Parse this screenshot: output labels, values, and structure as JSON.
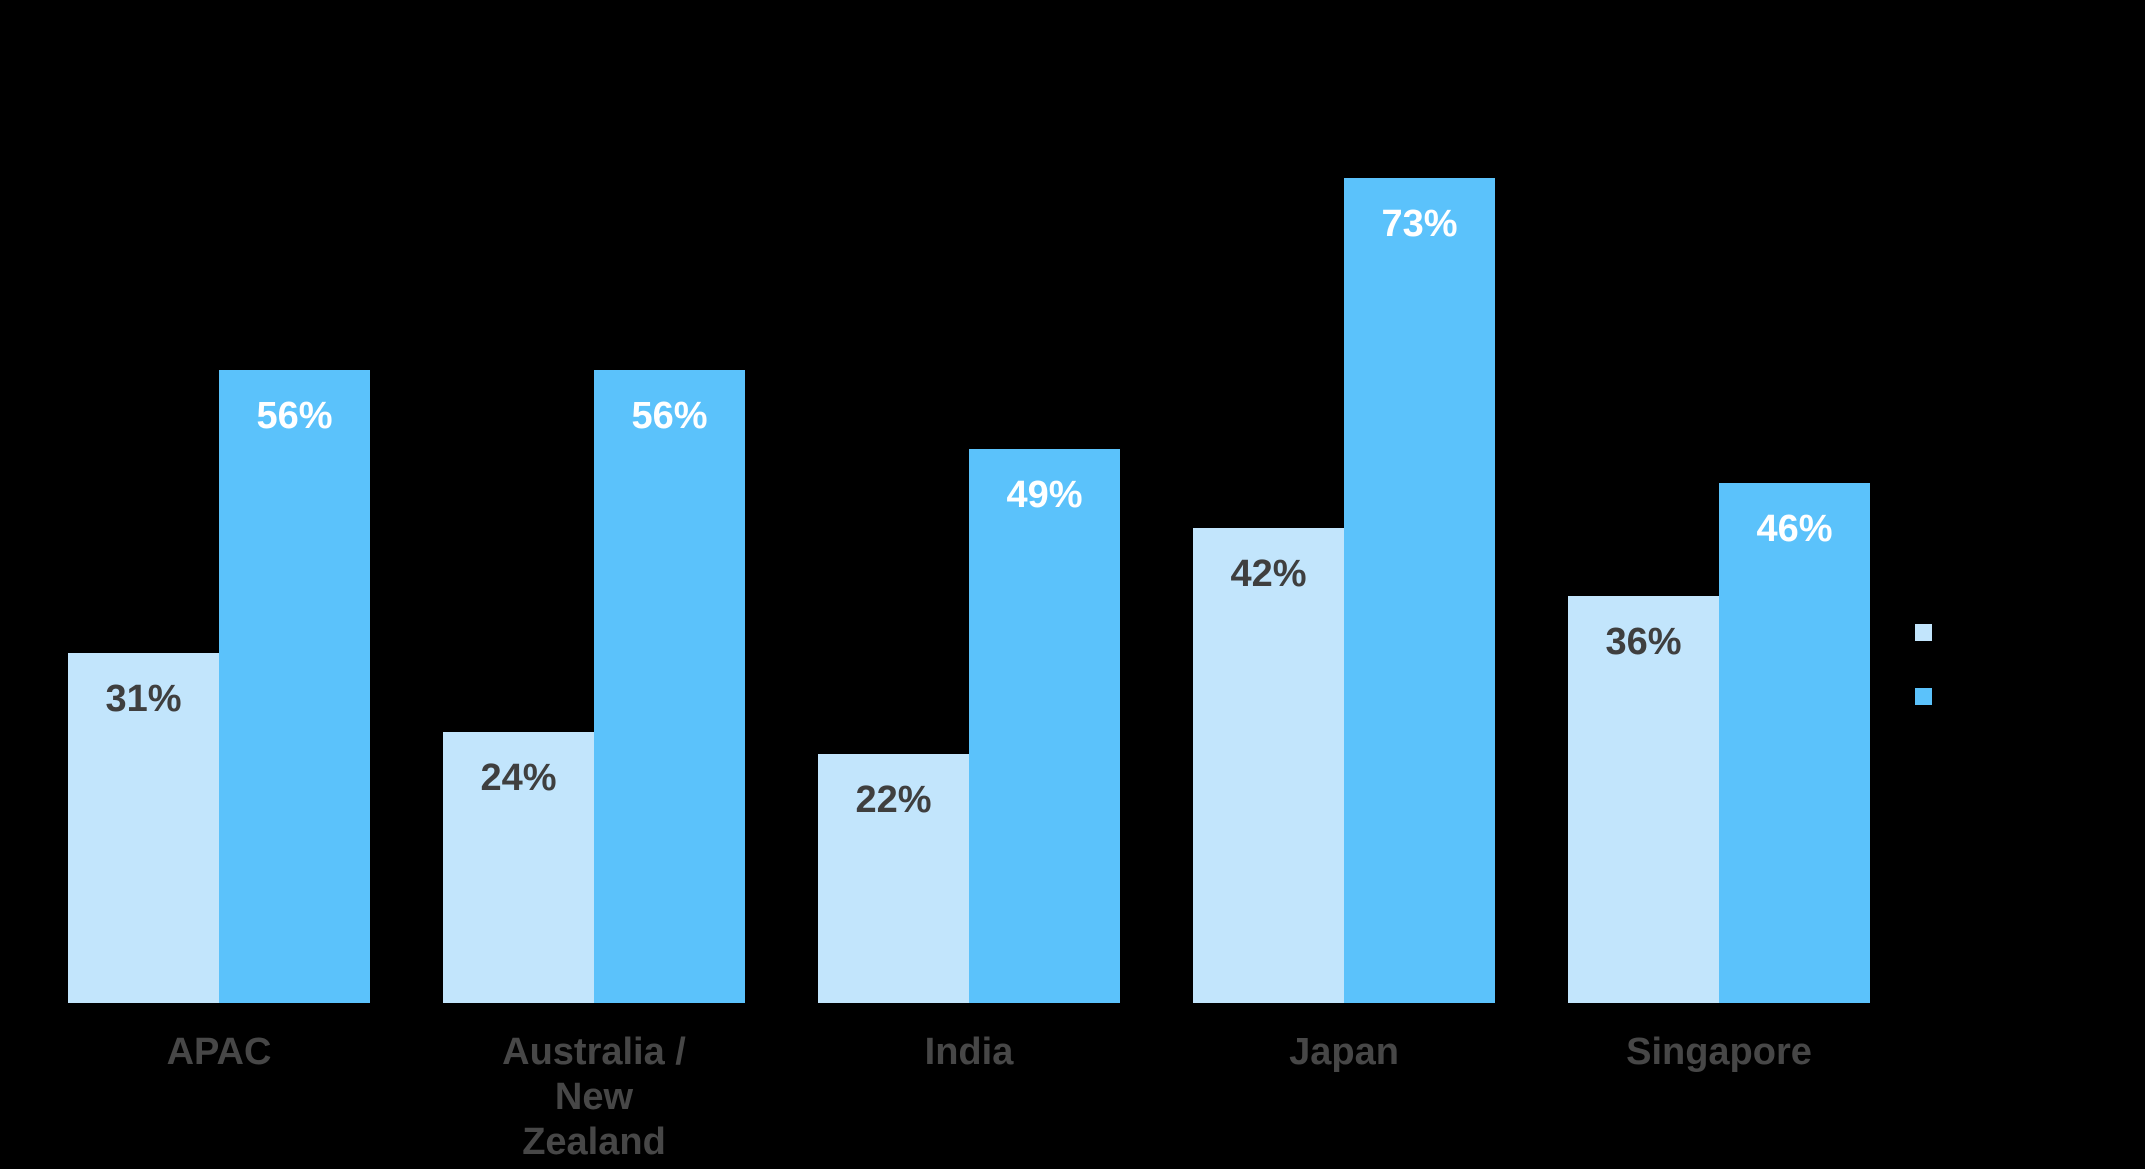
{
  "chart_data": {
    "type": "bar",
    "categories": [
      "APAC",
      "Australia /\nNew\nZealand",
      "India",
      "Japan",
      "Singapore"
    ],
    "unit": "%",
    "series": [
      {
        "name": "",
        "color": "#C2E5FC",
        "values": [
          31,
          24,
          22,
          42,
          36
        ],
        "value_labels": [
          "31%",
          "24%",
          "22%",
          "42%",
          "36%"
        ],
        "value_label_color": "#3F3F3F"
      },
      {
        "name": "",
        "color": "#5BC2FB",
        "values": [
          56,
          56,
          49,
          73,
          46
        ],
        "value_labels": [
          "56%",
          "56%",
          "49%",
          "73%",
          "46%"
        ],
        "value_label_color": "#FFFFFF"
      }
    ],
    "ylim": [
      0,
      100
    ],
    "grid": false,
    "axes_visible": false,
    "value_labels_position": "inside-top",
    "legend_position": "right"
  },
  "colors": {
    "background": "#000000",
    "category_label": "#474747"
  }
}
